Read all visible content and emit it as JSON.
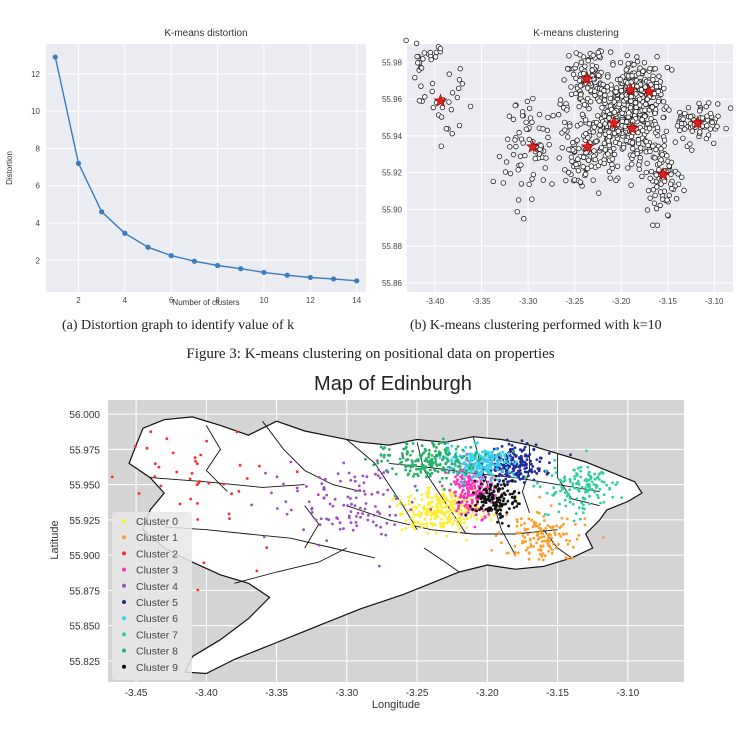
{
  "captions": {
    "sub_a": "(a) Distortion graph to identify value of k",
    "sub_b": "(b) K-means clustering performed with k=10",
    "figure": "Figure 3: K-means clustering on positional data on properties"
  },
  "chart_data": [
    {
      "type": "line",
      "title": "K-means distortion",
      "xlabel": "Number of clusters",
      "ylabel": "Distortion",
      "x": [
        1,
        2,
        3,
        4,
        5,
        6,
        7,
        8,
        9,
        10,
        11,
        12,
        13,
        14
      ],
      "y": [
        12.9,
        7.2,
        4.6,
        3.45,
        2.7,
        2.25,
        1.95,
        1.72,
        1.55,
        1.35,
        1.2,
        1.08,
        1.0,
        0.9
      ],
      "xticks": [
        "2",
        "4",
        "6",
        "8",
        "10",
        "12",
        "14"
      ],
      "yticks": [
        "2",
        "4",
        "6",
        "8",
        "10",
        "12"
      ],
      "xlim": [
        0.6,
        14.4
      ],
      "ylim": [
        0.3,
        13.6
      ],
      "grid": true,
      "colors": {
        "line": "#3a7dbf",
        "bg": "#ebebf2"
      }
    },
    {
      "type": "scatter",
      "title": "K-means clustering",
      "xlabel": "",
      "ylabel": "",
      "xticks": [
        "-3.40",
        "-3.35",
        "-3.30",
        "-3.25",
        "-3.20",
        "-3.15",
        "-3.10"
      ],
      "yticks": [
        "55.86",
        "55.88",
        "55.90",
        "55.92",
        "55.94",
        "55.96",
        "55.98"
      ],
      "xlim": [
        -3.43,
        -3.08
      ],
      "ylim": [
        55.855,
        55.99
      ],
      "grid": true,
      "centroids": [
        {
          "x": -3.394,
          "y": 55.959
        },
        {
          "x": -3.295,
          "y": 55.934
        },
        {
          "x": -3.237,
          "y": 55.971
        },
        {
          "x": -3.236,
          "y": 55.934
        },
        {
          "x": -3.208,
          "y": 55.947
        },
        {
          "x": -3.19,
          "y": 55.965
        },
        {
          "x": -3.188,
          "y": 55.944
        },
        {
          "x": -3.17,
          "y": 55.964
        },
        {
          "x": -3.155,
          "y": 55.919
        },
        {
          "x": -3.118,
          "y": 55.947
        }
      ],
      "colors": {
        "point_edge": "#222222",
        "point_fill": "#ffffff",
        "centroid": "#e0201b",
        "bg": "#ebebf2"
      }
    },
    {
      "type": "scatter",
      "title": "Map of Edinburgh",
      "xlabel": "Longitude",
      "ylabel": "Latitude",
      "xticks": [
        "-3.45",
        "-3.40",
        "-3.35",
        "-3.30",
        "-3.25",
        "-3.20",
        "-3.15",
        "-3.10"
      ],
      "yticks": [
        "56.000",
        "55.975",
        "55.950",
        "55.925",
        "55.900",
        "55.875",
        "55.850",
        "55.825"
      ],
      "xlim": [
        -3.47,
        -3.06
      ],
      "ylim": [
        55.81,
        56.01
      ],
      "grid": true,
      "legend_position": "lower-left",
      "series": [
        {
          "name": "Cluster 0",
          "color": "#ffee33",
          "cx": -3.232,
          "cy": 55.932,
          "sx": 0.015,
          "sy": 0.008
        },
        {
          "name": "Cluster 1",
          "color": "#ff9f2a",
          "cx": -3.16,
          "cy": 55.912,
          "sx": 0.014,
          "sy": 0.01
        },
        {
          "name": "Cluster 2",
          "color": "#ff2a2a",
          "cx": -3.405,
          "cy": 55.95,
          "sx": 0.03,
          "sy": 0.03
        },
        {
          "name": "Cluster 3",
          "color": "#ff33bb",
          "cx": -3.212,
          "cy": 55.947,
          "sx": 0.008,
          "sy": 0.01
        },
        {
          "name": "Cluster 4",
          "color": "#9d4fc0",
          "cx": -3.3,
          "cy": 55.938,
          "sx": 0.025,
          "sy": 0.014
        },
        {
          "name": "Cluster 5",
          "color": "#1f2a9a",
          "cx": -3.182,
          "cy": 55.964,
          "sx": 0.011,
          "sy": 0.006
        },
        {
          "name": "Cluster 6",
          "color": "#33d3f0",
          "cx": -3.205,
          "cy": 55.966,
          "sx": 0.011,
          "sy": 0.006
        },
        {
          "name": "Cluster 7",
          "color": "#2fcfa0",
          "cx": -3.135,
          "cy": 55.948,
          "sx": 0.013,
          "sy": 0.008
        },
        {
          "name": "Cluster 8",
          "color": "#27b06a",
          "cx": -3.24,
          "cy": 55.966,
          "sx": 0.018,
          "sy": 0.007
        },
        {
          "name": "Cluster 9",
          "color": "#111111",
          "cx": -3.195,
          "cy": 55.94,
          "sx": 0.008,
          "sy": 0.007
        }
      ],
      "colors": {
        "bg": "#d4d4d4",
        "map_fill": "#ffffff",
        "boundary": "#111111"
      }
    }
  ]
}
